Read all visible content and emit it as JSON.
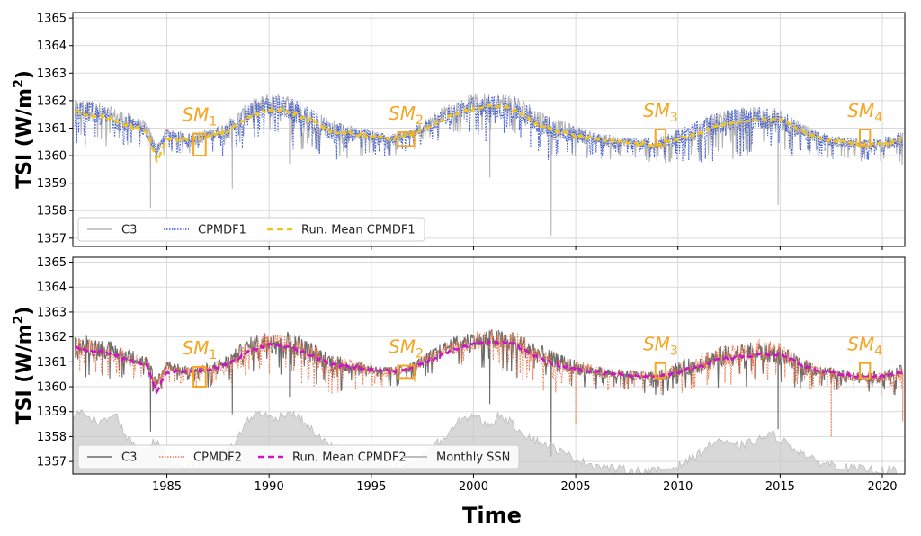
{
  "chart_data": [
    {
      "type": "line",
      "panel": "top",
      "ylabel": "TSI (W/m²)",
      "ylabel_main": "TSI (W/m",
      "ylabel_sup": "2",
      "ylabel_close": ")",
      "ylim": [
        1356.7,
        1365.2
      ],
      "xlim": [
        1980.4,
        2021.1
      ],
      "yticks": [
        1357,
        1358,
        1359,
        1360,
        1361,
        1362,
        1363,
        1364,
        1365
      ],
      "grid": true,
      "legend_position": "lower-left",
      "series": [
        {
          "name": "C3",
          "style": "solid",
          "color": "#b5b5b5",
          "x": [
            1980.5,
            1981,
            1982,
            1983,
            1984,
            1984.5,
            1985,
            1986,
            1987,
            1988,
            1989,
            1990,
            1991,
            1992,
            1993,
            1994,
            1995,
            1996,
            1997,
            1998,
            1999,
            2000,
            2001,
            2002,
            2003,
            2004,
            2005,
            2006,
            2007,
            2008,
            2009,
            2010,
            2011,
            2012,
            2013,
            2014,
            2015,
            2016,
            2017,
            2018,
            2019,
            2020,
            2021
          ],
          "y": [
            1361.6,
            1361.7,
            1361.5,
            1361.3,
            1361.0,
            1360.2,
            1360.9,
            1360.6,
            1360.7,
            1361.0,
            1361.6,
            1361.9,
            1361.8,
            1361.4,
            1361.0,
            1360.8,
            1360.7,
            1360.6,
            1360.8,
            1361.3,
            1361.7,
            1361.9,
            1361.9,
            1361.8,
            1361.4,
            1361.0,
            1360.8,
            1360.6,
            1360.5,
            1360.45,
            1360.4,
            1360.7,
            1360.9,
            1361.2,
            1361.3,
            1361.4,
            1361.3,
            1360.9,
            1360.6,
            1360.5,
            1360.4,
            1360.4,
            1360.6
          ],
          "dips": [
            [
              1984.2,
              1358.1
            ],
            [
              1988.2,
              1358.8
            ],
            [
              1991.0,
              1359.7
            ],
            [
              2000.8,
              1359.2
            ],
            [
              2003.8,
              1357.1
            ],
            [
              2014.9,
              1358.2
            ]
          ]
        },
        {
          "name": "CPMDF1",
          "style": "dotted",
          "color": "#3f5ad6",
          "x": [
            1980.5,
            1981,
            1982,
            1983,
            1984,
            1984.5,
            1985,
            1986,
            1987,
            1988,
            1989,
            1990,
            1991,
            1992,
            1993,
            1994,
            1995,
            1996,
            1997,
            1998,
            1999,
            2000,
            2001,
            2002,
            2003,
            2004,
            2005,
            2006,
            2007,
            2008,
            2009,
            2010,
            2011,
            2012,
            2013,
            2014,
            2015,
            2016,
            2017,
            2018,
            2019,
            2020,
            2021
          ],
          "y": [
            1361.5,
            1361.6,
            1361.4,
            1361.2,
            1360.9,
            1360.1,
            1360.8,
            1360.6,
            1360.7,
            1360.9,
            1361.5,
            1361.8,
            1361.7,
            1361.3,
            1360.9,
            1360.8,
            1360.7,
            1360.6,
            1360.8,
            1361.2,
            1361.6,
            1361.8,
            1361.8,
            1361.7,
            1361.3,
            1360.9,
            1360.8,
            1360.6,
            1360.5,
            1360.45,
            1360.4,
            1360.7,
            1360.9,
            1361.2,
            1361.3,
            1361.4,
            1361.3,
            1360.9,
            1360.6,
            1360.5,
            1360.4,
            1360.4,
            1360.6
          ]
        },
        {
          "name": "Run. Mean CPMDF1",
          "style": "dashed",
          "color": "#f2c51a",
          "x": [
            1980.5,
            1981,
            1982,
            1983,
            1984,
            1984.5,
            1985,
            1986,
            1987,
            1988,
            1989,
            1990,
            1991,
            1992,
            1993,
            1994,
            1995,
            1996,
            1997,
            1998,
            1999,
            2000,
            2001,
            2002,
            2003,
            2004,
            2005,
            2006,
            2007,
            2008,
            2009,
            2010,
            2011,
            2012,
            2013,
            2014,
            2015,
            2016,
            2017,
            2018,
            2019,
            2020,
            2021
          ],
          "y": [
            1361.6,
            1361.5,
            1361.4,
            1361.1,
            1360.9,
            1359.8,
            1360.6,
            1360.6,
            1360.7,
            1360.9,
            1361.4,
            1361.7,
            1361.6,
            1361.3,
            1360.9,
            1360.8,
            1360.7,
            1360.6,
            1360.8,
            1361.1,
            1361.5,
            1361.7,
            1361.8,
            1361.7,
            1361.2,
            1360.9,
            1360.7,
            1360.6,
            1360.5,
            1360.45,
            1360.4,
            1360.6,
            1360.8,
            1361.1,
            1361.2,
            1361.3,
            1361.3,
            1360.9,
            1360.6,
            1360.5,
            1360.4,
            1360.4,
            1360.6
          ]
        }
      ],
      "annotations": [
        {
          "label": "SM",
          "sub": "1",
          "box_x": [
            1986.3,
            1986.9
          ],
          "box_y": [
            1360.0,
            1360.8
          ]
        },
        {
          "label": "SM",
          "sub": "2",
          "box_x": [
            1996.3,
            1997.1
          ],
          "box_y": [
            1360.35,
            1360.85
          ]
        },
        {
          "label": "SM",
          "sub": "3",
          "box_x": [
            2008.9,
            2009.4
          ],
          "box_y": [
            1360.35,
            1360.95
          ]
        },
        {
          "label": "SM",
          "sub": "4",
          "box_x": [
            2018.9,
            2019.4
          ],
          "box_y": [
            1360.35,
            1360.95
          ]
        }
      ]
    },
    {
      "type": "line",
      "panel": "bottom",
      "ylabel": "TSI (W/m²)",
      "ylabel_main": "TSI (W/m",
      "ylabel_sup": "2",
      "ylabel_close": ")",
      "xlabel": "Time",
      "ylim": [
        1356.5,
        1365.2
      ],
      "xlim": [
        1980.4,
        2021.1
      ],
      "yticks": [
        1357,
        1358,
        1359,
        1360,
        1361,
        1362,
        1363,
        1364,
        1365
      ],
      "xticks": [
        1985,
        1990,
        1995,
        2000,
        2005,
        2010,
        2015,
        2020
      ],
      "grid": true,
      "legend_position": "lower-left",
      "series": [
        {
          "name": "C3",
          "style": "solid",
          "color": "#6b6b6b",
          "x": [
            1980.5,
            1981,
            1982,
            1983,
            1984,
            1984.5,
            1985,
            1986,
            1987,
            1988,
            1989,
            1990,
            1991,
            1992,
            1993,
            1994,
            1995,
            1996,
            1997,
            1998,
            1999,
            2000,
            2001,
            2002,
            2003,
            2004,
            2005,
            2006,
            2007,
            2008,
            2009,
            2010,
            2011,
            2012,
            2013,
            2014,
            2015,
            2016,
            2017,
            2018,
            2019,
            2020,
            2021
          ],
          "y": [
            1361.6,
            1361.7,
            1361.5,
            1361.3,
            1361.0,
            1360.2,
            1360.9,
            1360.6,
            1360.7,
            1361.0,
            1361.6,
            1361.9,
            1361.8,
            1361.4,
            1361.0,
            1360.8,
            1360.7,
            1360.6,
            1360.8,
            1361.3,
            1361.7,
            1361.9,
            1361.9,
            1361.8,
            1361.4,
            1361.0,
            1360.8,
            1360.6,
            1360.5,
            1360.45,
            1360.4,
            1360.7,
            1360.9,
            1361.2,
            1361.3,
            1361.4,
            1361.3,
            1360.9,
            1360.6,
            1360.5,
            1360.4,
            1360.4,
            1360.6
          ],
          "dips": [
            [
              1984.2,
              1358.2
            ],
            [
              1988.2,
              1358.9
            ],
            [
              1991.0,
              1359.6
            ],
            [
              2000.8,
              1359.3
            ],
            [
              2003.8,
              1357.2
            ],
            [
              2014.9,
              1358.3
            ]
          ]
        },
        {
          "name": "CPMDF2",
          "style": "dotted",
          "color": "#f07a4e",
          "x": [
            1980.5,
            1981,
            1982,
            1983,
            1984,
            1984.5,
            1985,
            1986,
            1987,
            1988,
            1989,
            1990,
            1991,
            1992,
            1993,
            1994,
            1995,
            1996,
            1997,
            1998,
            1999,
            2000,
            2001,
            2002,
            2003,
            2004,
            2005,
            2006,
            2007,
            2008,
            2009,
            2010,
            2011,
            2012,
            2013,
            2014,
            2015,
            2016,
            2017,
            2018,
            2019,
            2020,
            2021
          ],
          "y": [
            1361.5,
            1361.6,
            1361.4,
            1361.2,
            1360.9,
            1360.1,
            1360.8,
            1360.6,
            1360.7,
            1360.9,
            1361.5,
            1361.8,
            1361.7,
            1361.3,
            1360.9,
            1360.8,
            1360.7,
            1360.6,
            1360.8,
            1361.2,
            1361.6,
            1361.8,
            1361.9,
            1361.8,
            1361.3,
            1360.9,
            1360.8,
            1360.6,
            1360.5,
            1360.45,
            1360.4,
            1360.7,
            1360.9,
            1361.2,
            1361.3,
            1361.5,
            1361.4,
            1360.9,
            1360.6,
            1360.5,
            1360.4,
            1360.4,
            1360.5
          ],
          "dips": [
            [
              2005.0,
              1358.5
            ],
            [
              2017.5,
              1358.0
            ],
            [
              2021.0,
              1358.6
            ]
          ]
        },
        {
          "name": "Run. Mean CPMDF2",
          "style": "dashed",
          "color": "#cc14c8",
          "x": [
            1980.5,
            1981,
            1982,
            1983,
            1984,
            1984.5,
            1985,
            1986,
            1987,
            1988,
            1989,
            1990,
            1991,
            1992,
            1993,
            1994,
            1995,
            1996,
            1997,
            1998,
            1999,
            2000,
            2001,
            2002,
            2003,
            2004,
            2005,
            2006,
            2007,
            2008,
            2009,
            2010,
            2011,
            2012,
            2013,
            2014,
            2015,
            2016,
            2017,
            2018,
            2019,
            2020,
            2021
          ],
          "y": [
            1361.6,
            1361.5,
            1361.4,
            1361.1,
            1360.9,
            1359.8,
            1360.6,
            1360.6,
            1360.7,
            1360.9,
            1361.4,
            1361.7,
            1361.6,
            1361.3,
            1360.9,
            1360.8,
            1360.7,
            1360.6,
            1360.8,
            1361.1,
            1361.5,
            1361.7,
            1361.8,
            1361.7,
            1361.2,
            1360.9,
            1360.7,
            1360.6,
            1360.5,
            1360.45,
            1360.4,
            1360.6,
            1360.8,
            1361.1,
            1361.2,
            1361.3,
            1361.3,
            1360.9,
            1360.6,
            1360.5,
            1360.4,
            1360.4,
            1360.6
          ]
        },
        {
          "name": "Monthly SSN",
          "style": "area",
          "color": "#c8c8c8",
          "x": [
            1980.4,
            1981,
            1981.7,
            1982.5,
            1983,
            1983.7,
            1984.5,
            1985.2,
            1986,
            1986.7,
            1987.5,
            1988.3,
            1988.9,
            1989.5,
            1990.2,
            1991,
            1991.7,
            1992.4,
            1993,
            1993.8,
            1994.6,
            1995.5,
            1996.4,
            1997.2,
            1998,
            1998.7,
            1999.3,
            2000,
            2000.7,
            2001.3,
            2001.9,
            2002.5,
            2003.2,
            2003.8,
            2004.5,
            2005.3,
            2006,
            2007,
            2008,
            2009,
            2010,
            2010.6,
            2011.3,
            2012,
            2012.6,
            2013.3,
            2014,
            2014.6,
            2015.2,
            2016,
            2016.7,
            2017.5,
            2018.3,
            2019,
            2020,
            2020.7
          ],
          "y": [
            1358.8,
            1359.0,
            1358.5,
            1358.9,
            1358.0,
            1357.5,
            1357.8,
            1357.0,
            1356.8,
            1356.9,
            1357.2,
            1357.7,
            1358.6,
            1359.0,
            1358.7,
            1359.0,
            1358.6,
            1358.0,
            1357.6,
            1357.5,
            1357.1,
            1356.9,
            1356.8,
            1357.0,
            1357.6,
            1358.0,
            1358.6,
            1358.9,
            1358.4,
            1358.9,
            1358.5,
            1358.1,
            1357.8,
            1357.6,
            1357.3,
            1357.0,
            1356.85,
            1356.7,
            1356.65,
            1356.62,
            1356.8,
            1357.1,
            1357.5,
            1357.9,
            1357.6,
            1357.7,
            1357.9,
            1358.1,
            1357.8,
            1357.4,
            1357.0,
            1356.9,
            1356.75,
            1356.7,
            1356.65,
            1356.65
          ]
        }
      ],
      "annotations": [
        {
          "label": "SM",
          "sub": "1",
          "box_x": [
            1986.3,
            1986.9
          ],
          "box_y": [
            1360.0,
            1360.8
          ]
        },
        {
          "label": "SM",
          "sub": "2",
          "box_x": [
            1996.3,
            1997.1
          ],
          "box_y": [
            1360.35,
            1360.85
          ]
        },
        {
          "label": "SM",
          "sub": "3",
          "box_x": [
            2008.9,
            2009.4
          ],
          "box_y": [
            1360.35,
            1360.95
          ]
        },
        {
          "label": "SM",
          "sub": "4",
          "box_x": [
            2018.9,
            2019.4
          ],
          "box_y": [
            1360.35,
            1360.95
          ]
        }
      ]
    }
  ]
}
